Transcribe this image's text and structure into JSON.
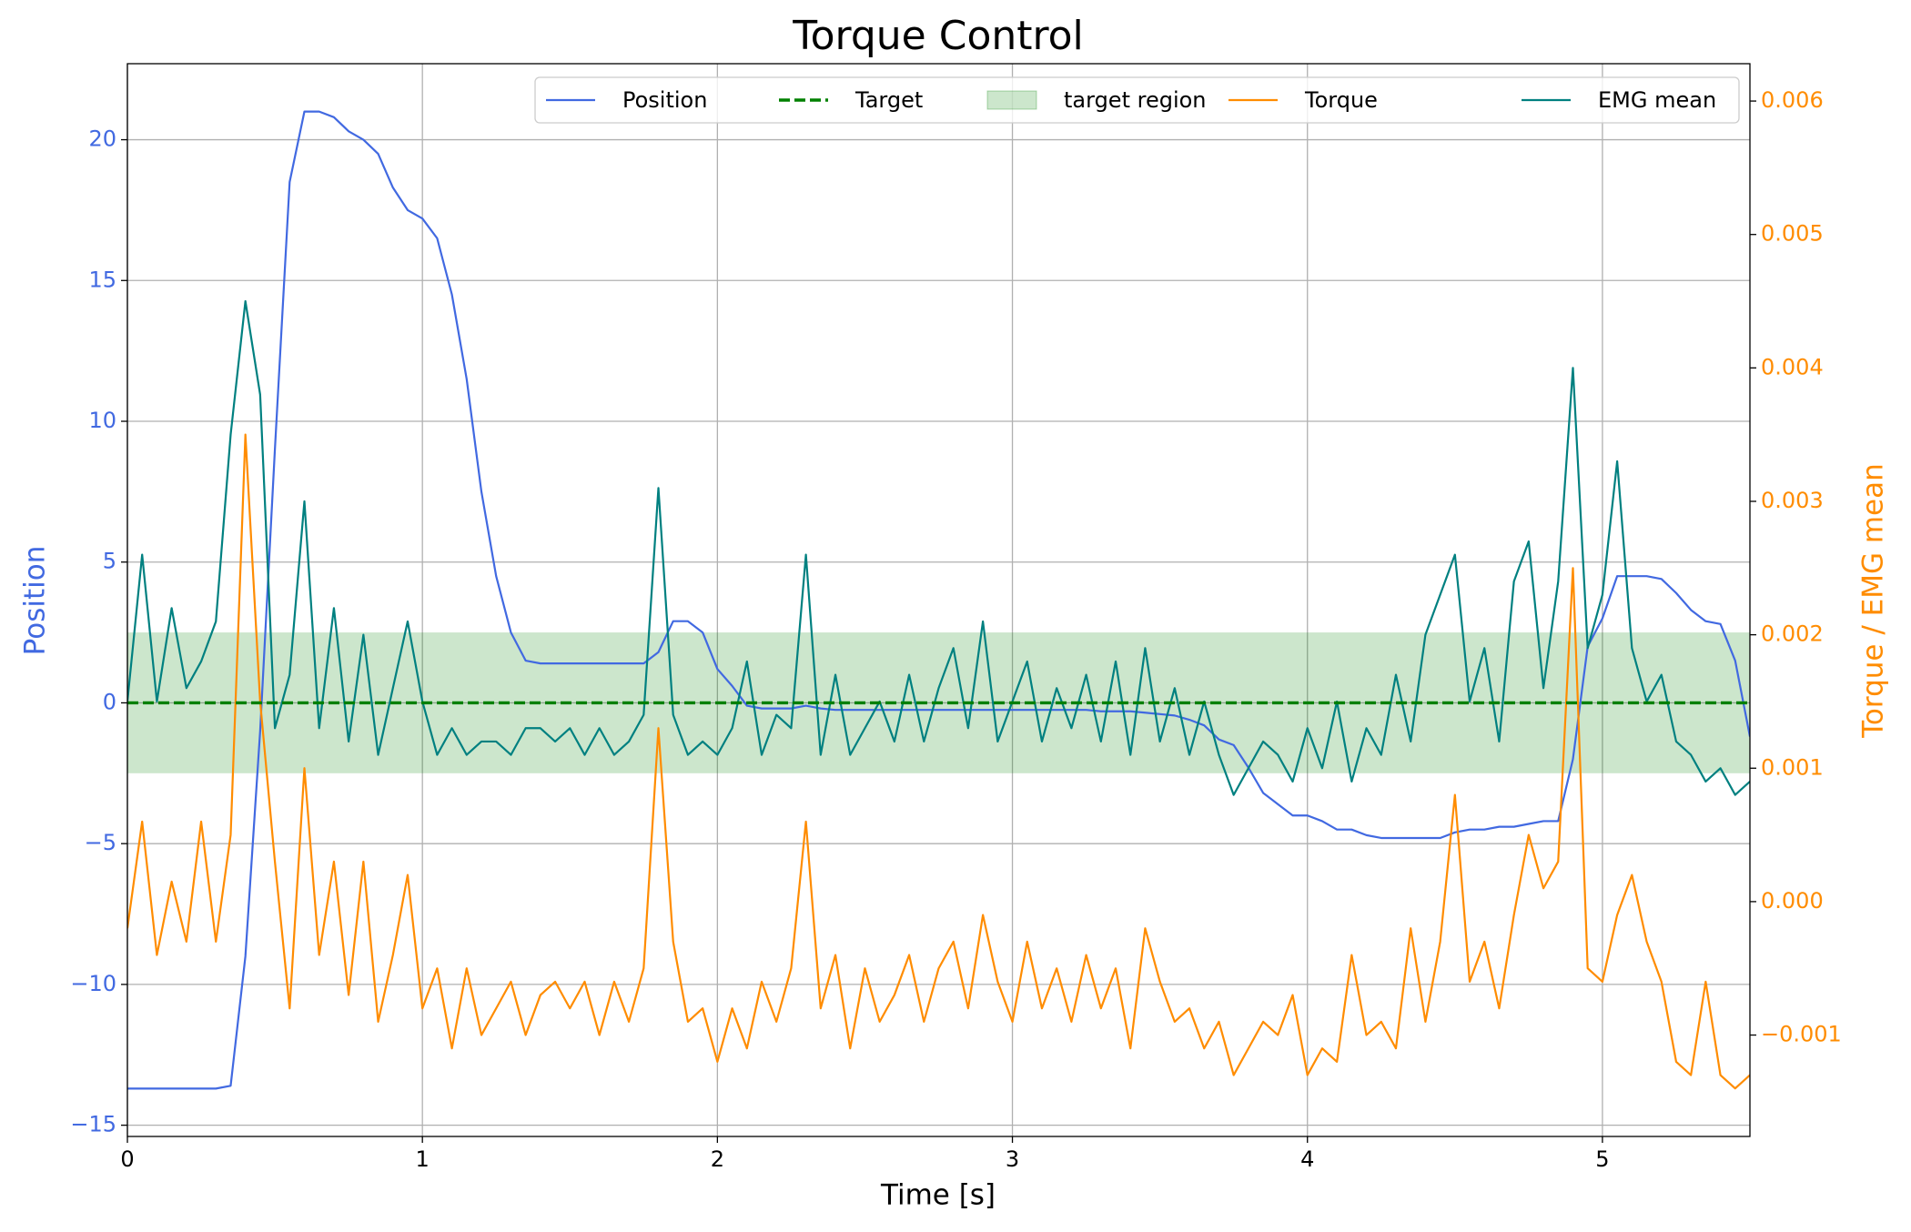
{
  "chart_data": {
    "type": "line",
    "title": "Torque Control",
    "x_label": "Time [s]",
    "y_label": "Position",
    "y2_label": "Torque / EMG mean",
    "x": [
      0,
      0.05,
      0.1,
      0.15,
      0.2,
      0.25,
      0.3,
      0.35,
      0.4,
      0.45,
      0.5,
      0.55,
      0.6,
      0.65,
      0.7,
      0.75,
      0.8,
      0.85,
      0.9,
      0.95,
      1.0,
      1.05,
      1.1,
      1.15,
      1.2,
      1.25,
      1.3,
      1.35,
      1.4,
      1.45,
      1.5,
      1.55,
      1.6,
      1.65,
      1.7,
      1.75,
      1.8,
      1.85,
      1.9,
      1.95,
      2.0,
      2.05,
      2.1,
      2.15,
      2.2,
      2.25,
      2.3,
      2.35,
      2.4,
      2.45,
      2.5,
      2.55,
      2.6,
      2.65,
      2.7,
      2.75,
      2.8,
      2.85,
      2.9,
      2.95,
      3.0,
      3.05,
      3.1,
      3.15,
      3.2,
      3.25,
      3.3,
      3.35,
      3.4,
      3.45,
      3.5,
      3.55,
      3.6,
      3.65,
      3.7,
      3.75,
      3.8,
      3.85,
      3.9,
      3.95,
      4.0,
      4.05,
      4.1,
      4.15,
      4.2,
      4.25,
      4.3,
      4.35,
      4.4,
      4.45,
      4.5,
      4.55,
      4.6,
      4.65,
      4.7,
      4.75,
      4.8,
      4.85,
      4.9,
      4.95,
      5.0,
      5.05,
      5.1,
      5.15,
      5.2,
      5.25,
      5.3,
      5.35,
      5.4,
      5.45,
      5.5
    ],
    "series": [
      {
        "name": "Position",
        "color": "#4169e1",
        "axis": "y",
        "values": [
          -13.7,
          -13.7,
          -13.7,
          -13.7,
          -13.7,
          -13.7,
          -13.7,
          -13.6,
          -9,
          -1,
          9,
          18.5,
          21,
          21,
          20.8,
          20.3,
          20,
          19.5,
          18.3,
          17.5,
          17.2,
          16.5,
          14.5,
          11.5,
          7.5,
          4.5,
          2.5,
          1.5,
          1.4,
          1.4,
          1.4,
          1.4,
          1.4,
          1.4,
          1.4,
          1.4,
          1.8,
          2.9,
          2.9,
          2.5,
          1.2,
          0.6,
          -0.1,
          -0.2,
          -0.2,
          -0.2,
          -0.1,
          -0.2,
          -0.25,
          -0.25,
          -0.25,
          -0.25,
          -0.25,
          -0.25,
          -0.25,
          -0.25,
          -0.25,
          -0.25,
          -0.25,
          -0.25,
          -0.25,
          -0.25,
          -0.25,
          -0.25,
          -0.25,
          -0.25,
          -0.3,
          -0.3,
          -0.3,
          -0.35,
          -0.4,
          -0.45,
          -0.6,
          -0.8,
          -1.3,
          -1.5,
          -2.3,
          -3.2,
          -3.6,
          -4,
          -4,
          -4.2,
          -4.5,
          -4.5,
          -4.7,
          -4.8,
          -4.8,
          -4.8,
          -4.8,
          -4.8,
          -4.6,
          -4.5,
          -4.5,
          -4.4,
          -4.4,
          -4.3,
          -4.2,
          -4.2,
          -2,
          2,
          3,
          4.5,
          4.5,
          4.5,
          4.4,
          3.9,
          3.3,
          2.9,
          2.8,
          1.5,
          -1.2
        ]
      },
      {
        "name": "Torque",
        "color": "#ff8c00",
        "axis": "y2",
        "values": [
          -0.0002,
          0.0006,
          -0.0004,
          0.00015,
          -0.0003,
          0.0006,
          -0.0003,
          0.0005,
          0.0035,
          0.0015,
          0.0003,
          -0.0008,
          0.001,
          -0.0004,
          0.0003,
          -0.0007,
          0.0003,
          -0.0009,
          -0.0004,
          0.0002,
          -0.0008,
          -0.0005,
          -0.0011,
          -0.0005,
          -0.001,
          -0.0008,
          -0.0006,
          -0.001,
          -0.0007,
          -0.0006,
          -0.0008,
          -0.0006,
          -0.001,
          -0.0006,
          -0.0009,
          -0.0005,
          0.0013,
          -0.0003,
          -0.0009,
          -0.0008,
          -0.0012,
          -0.0008,
          -0.0011,
          -0.0006,
          -0.0009,
          -0.0005,
          0.0006,
          -0.0008,
          -0.0004,
          -0.0011,
          -0.0005,
          -0.0009,
          -0.0007,
          -0.0004,
          -0.0009,
          -0.0005,
          -0.0003,
          -0.0008,
          -0.0001,
          -0.0006,
          -0.0009,
          -0.0003,
          -0.0008,
          -0.0005,
          -0.0009,
          -0.0004,
          -0.0008,
          -0.0005,
          -0.0011,
          -0.0002,
          -0.0006,
          -0.0009,
          -0.0008,
          -0.0011,
          -0.0009,
          -0.0013,
          -0.0011,
          -0.0009,
          -0.001,
          -0.0007,
          -0.0013,
          -0.0011,
          -0.0012,
          -0.0004,
          -0.001,
          -0.0009,
          -0.0011,
          -0.0002,
          -0.0009,
          -0.0003,
          0.0008,
          -0.0006,
          -0.0003,
          -0.0008,
          -0.0001,
          0.0005,
          0.0001,
          0.0003,
          0.0025,
          -0.0005,
          -0.0006,
          -0.0001,
          0.0002,
          -0.0003,
          -0.0006,
          -0.0012,
          -0.0013,
          -0.0006,
          -0.0013,
          -0.0014,
          -0.0013
        ]
      },
      {
        "name": "EMG mean",
        "color": "#008080",
        "axis": "y2",
        "values": [
          0.0015,
          0.0026,
          0.0015,
          0.0022,
          0.0016,
          0.0018,
          0.0021,
          0.0035,
          0.0045,
          0.0038,
          0.0013,
          0.0017,
          0.003,
          0.0013,
          0.0022,
          0.0012,
          0.002,
          0.0011,
          0.0016,
          0.0021,
          0.0015,
          0.0011,
          0.0013,
          0.0011,
          0.0012,
          0.0012,
          0.0011,
          0.0013,
          0.0013,
          0.0012,
          0.0013,
          0.0011,
          0.0013,
          0.0011,
          0.0012,
          0.0014,
          0.0031,
          0.0014,
          0.0011,
          0.0012,
          0.0011,
          0.0013,
          0.0018,
          0.0011,
          0.0014,
          0.0013,
          0.0026,
          0.0011,
          0.0017,
          0.0011,
          0.0013,
          0.0015,
          0.0012,
          0.0017,
          0.0012,
          0.0016,
          0.0019,
          0.0013,
          0.0021,
          0.0012,
          0.0015,
          0.0018,
          0.0012,
          0.0016,
          0.0013,
          0.0017,
          0.0012,
          0.0018,
          0.0011,
          0.0019,
          0.0012,
          0.0016,
          0.0011,
          0.0015,
          0.0011,
          0.0008,
          0.001,
          0.0012,
          0.0011,
          0.0009,
          0.0013,
          0.001,
          0.0015,
          0.0009,
          0.0013,
          0.0011,
          0.0017,
          0.0012,
          0.002,
          0.0023,
          0.0026,
          0.0015,
          0.0019,
          0.0012,
          0.0024,
          0.0027,
          0.0016,
          0.0024,
          0.004,
          0.0019,
          0.0023,
          0.0033,
          0.0019,
          0.0015,
          0.0017,
          0.0012,
          0.0011,
          0.0009,
          0.001,
          0.0008,
          0.0009
        ]
      }
    ],
    "target": {
      "name": "Target",
      "value": 0,
      "color": "#008000"
    },
    "target_region": {
      "name": "target region",
      "range": [
        -2.5,
        2.5
      ],
      "color": "#008000"
    },
    "xlim": [
      0,
      5.5
    ],
    "xticks": [
      0,
      1,
      2,
      3,
      4,
      5
    ],
    "ylim": [
      -15.4,
      22.7
    ],
    "yticks": [
      {
        "value": -15,
        "label": "−15"
      },
      {
        "value": -10,
        "label": "−10"
      },
      {
        "value": -5,
        "label": "−5"
      },
      0,
      5,
      10,
      15,
      20
    ],
    "y2lim": [
      -0.00176,
      0.00628
    ],
    "y2ticks": [
      {
        "value": -0.001,
        "label": "−0.001"
      },
      {
        "value": 0,
        "label": "0.000"
      },
      0.001,
      0.002,
      0.003,
      0.004,
      0.005,
      0.006
    ],
    "grid": true,
    "legend": "top"
  }
}
